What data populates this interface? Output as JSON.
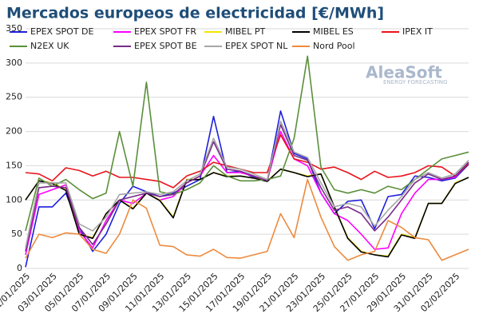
{
  "chart_data": {
    "type": "line",
    "title": "Mercados europeos de electricidad [€/MWh]",
    "annotations": [
      "AleaSoft",
      "ENERGY FORECASTING"
    ],
    "categories": [
      "01/01/2025",
      null,
      "03/01/2025",
      null,
      "05/01/2025",
      null,
      "07/01/2025",
      null,
      "09/01/2025",
      null,
      "11/01/2025",
      null,
      "13/01/2025",
      null,
      "15/01/2025",
      null,
      "17/01/2025",
      null,
      "19/01/2025",
      null,
      "21/01/2025",
      null,
      "23/01/2025",
      null,
      "25/01/2025",
      null,
      "27/01/2025",
      null,
      "29/01/2025",
      null,
      "31/01/2025",
      null,
      "02/02/2025",
      null
    ],
    "ylim": [
      0,
      350
    ],
    "yticks": [
      0,
      50,
      100,
      150,
      200,
      250,
      300,
      350
    ],
    "grid": true,
    "series": [
      {
        "name": "EPEX SPOT DE",
        "color": "#1f1fdc",
        "values": [
          2,
          90,
          90,
          110,
          60,
          25,
          50,
          95,
          120,
          112,
          105,
          110,
          120,
          130,
          222,
          140,
          142,
          133,
          128,
          230,
          168,
          160,
          110,
          80,
          98,
          100,
          58,
          105,
          108,
          135,
          133,
          128,
          132,
          152
        ]
      },
      {
        "name": "EPEX SPOT FR",
        "color": "#ff00ff",
        "values": [
          20,
          108,
          115,
          122,
          55,
          30,
          70,
          100,
          95,
          110,
          100,
          105,
          125,
          135,
          165,
          140,
          140,
          135,
          128,
          200,
          160,
          150,
          110,
          80,
          70,
          50,
          28,
          30,
          80,
          110,
          130,
          130,
          133,
          155
        ]
      },
      {
        "name": "MIBEL PT",
        "color": "#f2e600",
        "values": [
          100,
          128,
          125,
          115,
          50,
          45,
          80,
          100,
          88,
          110,
          100,
          75,
          130,
          130,
          140,
          135,
          135,
          132,
          128,
          145,
          140,
          135,
          138,
          90,
          45,
          25,
          20,
          18,
          50,
          45,
          95,
          95,
          125,
          133
        ]
      },
      {
        "name": "MIBEL ES",
        "color": "#000000",
        "values": [
          100,
          128,
          124,
          114,
          50,
          44,
          80,
          100,
          87,
          110,
          99,
          74,
          129,
          130,
          140,
          134,
          135,
          132,
          127,
          145,
          140,
          134,
          138,
          90,
          44,
          24,
          20,
          17,
          49,
          44,
          95,
          95,
          124,
          133
        ]
      },
      {
        "name": "IPEX IT",
        "color": "#e8141c",
        "values": [
          140,
          138,
          128,
          147,
          143,
          135,
          142,
          133,
          133,
          130,
          127,
          118,
          135,
          142,
          155,
          150,
          145,
          140,
          140,
          195,
          160,
          155,
          145,
          148,
          140,
          130,
          142,
          133,
          135,
          140,
          150,
          148,
          135,
          153
        ]
      },
      {
        "name": "N2EX UK",
        "color": "#5a8f3a",
        "values": [
          55,
          132,
          120,
          130,
          115,
          102,
          110,
          200,
          120,
          272,
          112,
          108,
          115,
          125,
          150,
          135,
          128,
          128,
          130,
          135,
          190,
          310,
          148,
          115,
          110,
          115,
          110,
          120,
          115,
          130,
          145,
          160,
          165,
          170
        ]
      },
      {
        "name": "EPEX SPOT BE",
        "color": "#7a2a8a",
        "values": [
          25,
          118,
          120,
          118,
          60,
          35,
          65,
          100,
          105,
          110,
          105,
          108,
          125,
          135,
          185,
          145,
          142,
          135,
          128,
          210,
          165,
          158,
          118,
          85,
          90,
          80,
          55,
          75,
          100,
          125,
          138,
          130,
          135,
          155
        ]
      },
      {
        "name": "EPEX SPOT NL",
        "color": "#a6a6a6",
        "values": [
          30,
          125,
          125,
          125,
          65,
          55,
          75,
          108,
          110,
          112,
          108,
          112,
          128,
          138,
          190,
          148,
          145,
          138,
          130,
          215,
          170,
          162,
          125,
          90,
          95,
          90,
          62,
          85,
          105,
          130,
          140,
          132,
          138,
          158
        ]
      },
      {
        "name": "Nord Pool",
        "color": "#ed8a3e",
        "values": [
          15,
          50,
          45,
          52,
          50,
          28,
          22,
          50,
          100,
          88,
          34,
          32,
          20,
          18,
          28,
          16,
          15,
          20,
          25,
          80,
          45,
          130,
          75,
          32,
          12,
          20,
          25,
          70,
          60,
          45,
          42,
          12,
          20,
          28
        ]
      }
    ]
  }
}
